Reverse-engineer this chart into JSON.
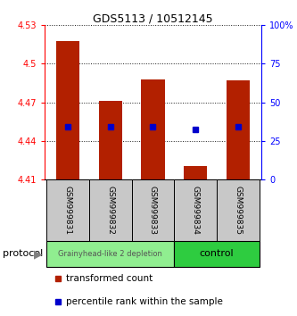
{
  "title": "GDS5113 / 10512145",
  "samples": [
    "GSM999831",
    "GSM999832",
    "GSM999833",
    "GSM999834",
    "GSM999835"
  ],
  "bar_tops": [
    4.518,
    4.471,
    4.488,
    4.42,
    4.487
  ],
  "bar_bottoms": [
    4.41,
    4.41,
    4.41,
    4.41,
    4.41
  ],
  "percentile_values": [
    4.451,
    4.451,
    4.451,
    4.449,
    4.451
  ],
  "bar_color": "#B22000",
  "percentile_color": "#0000CC",
  "ylim_left": [
    4.41,
    4.53
  ],
  "ylim_right": [
    0,
    100
  ],
  "yticks_left": [
    4.41,
    4.44,
    4.47,
    4.5,
    4.53
  ],
  "yticks_right": [
    0,
    25,
    50,
    75,
    100
  ],
  "ytick_labels_right": [
    "0",
    "25",
    "50",
    "75",
    "100%"
  ],
  "groups": [
    {
      "label": "Grainyhead-like 2 depletion",
      "indices": [
        0,
        1,
        2
      ],
      "color": "#90EE90",
      "text_color": "#555555"
    },
    {
      "label": "control",
      "indices": [
        3,
        4
      ],
      "color": "#2ECC40",
      "text_color": "#000000"
    }
  ],
  "protocol_label": "protocol",
  "legend_items": [
    {
      "label": "transformed count",
      "color": "#B22000",
      "marker": "s"
    },
    {
      "label": "percentile rank within the sample",
      "color": "#0000CC",
      "marker": "s"
    }
  ],
  "bar_width": 0.55,
  "fig_width": 3.33,
  "fig_height": 3.54,
  "dpi": 100
}
